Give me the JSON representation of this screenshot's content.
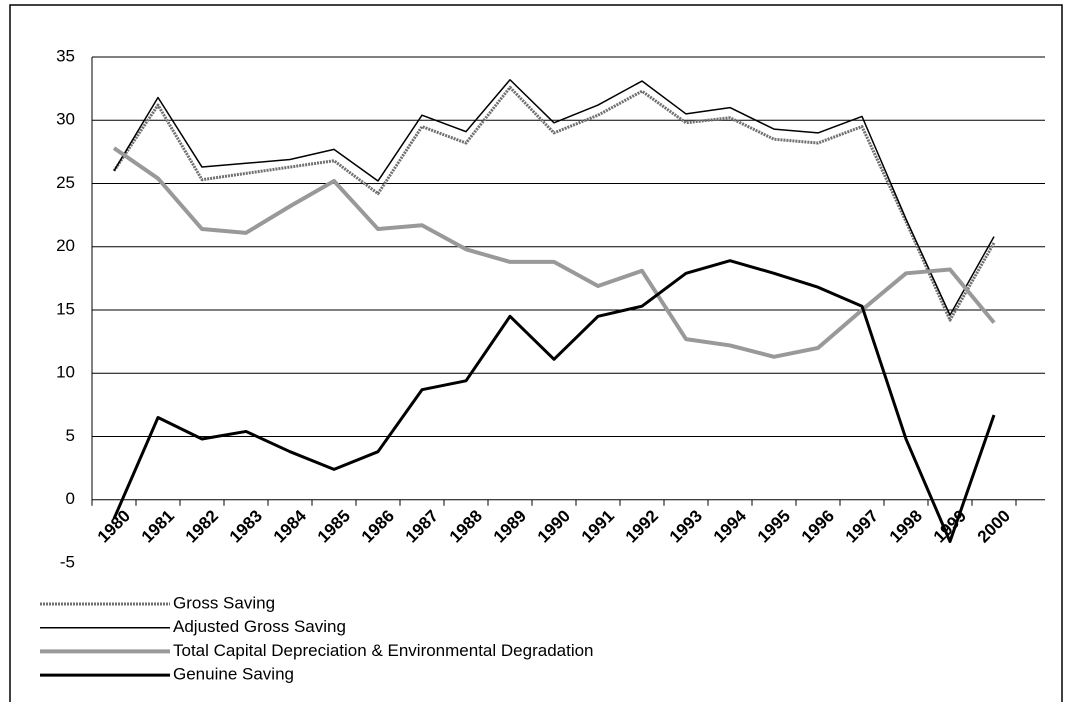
{
  "chart_data": {
    "type": "line",
    "categories": [
      "1980",
      "1981",
      "1982",
      "1983",
      "1984",
      "1985",
      "1986",
      "1987",
      "1988",
      "1989",
      "1990",
      "1991",
      "1992",
      "1993",
      "1994",
      "1995",
      "1996",
      "1997",
      "1998",
      "1999",
      "2000"
    ],
    "series": [
      {
        "name": "Gross Saving",
        "color": "#707070",
        "values": [
          26,
          31.2,
          25.3,
          25.8,
          26.3,
          26.8,
          24.2,
          29.5,
          28.2,
          32.6,
          29,
          30.4,
          32.3,
          29.8,
          30.2,
          28.5,
          28.2,
          29.5,
          22,
          14.2,
          20.3
        ]
      },
      {
        "name": "Adjusted Gross Saving",
        "color": "#000000",
        "values": [
          26,
          31.8,
          26.3,
          26.6,
          26.9,
          27.7,
          25.2,
          30.4,
          29.1,
          33.2,
          29.8,
          31.2,
          33.1,
          30.5,
          31,
          29.3,
          29,
          30.3,
          22.2,
          14.6,
          20.8
        ]
      },
      {
        "name": "Total Capital Depreciation & Environmental Degradation",
        "color": "#999999",
        "values": [
          27.8,
          25.4,
          21.4,
          21.1,
          23.2,
          25.2,
          21.4,
          21.7,
          19.8,
          18.8,
          18.8,
          16.9,
          18.1,
          12.7,
          12.2,
          11.3,
          12,
          15,
          17.9,
          18.2,
          14
        ]
      },
      {
        "name": "Genuine Saving",
        "color": "#000000",
        "values": [
          -1.5,
          6.5,
          4.8,
          5.4,
          3.8,
          2.4,
          3.8,
          8.7,
          9.4,
          14.5,
          11.1,
          14.5,
          15.3,
          17.9,
          18.9,
          17.9,
          16.8,
          15.3,
          4.8,
          -3.3,
          6.7
        ]
      }
    ],
    "ylim": [
      -5,
      35
    ],
    "yticks": [
      -5,
      0,
      5,
      10,
      15,
      20,
      25,
      30,
      35
    ],
    "grid": true,
    "legend": "bottom-left"
  }
}
